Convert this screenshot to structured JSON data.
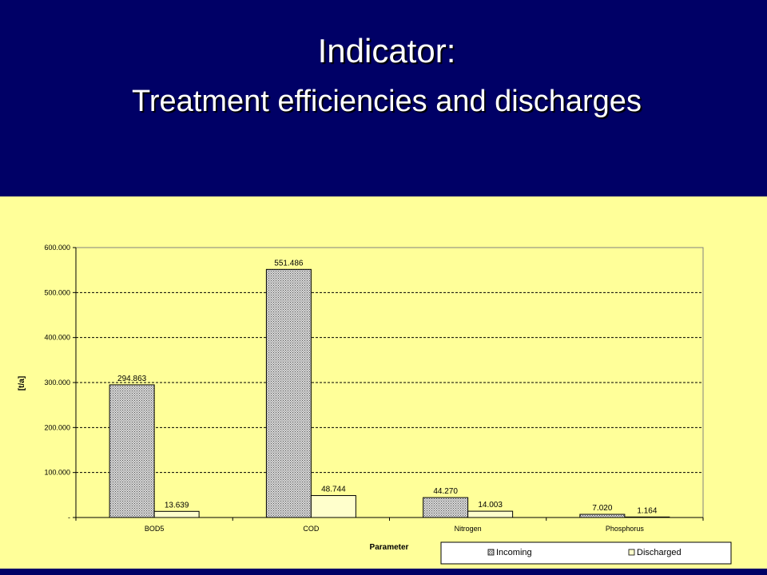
{
  "header": {
    "title_line1": "Indicator:",
    "title_line2": "Treatment efficiencies and discharges"
  },
  "colors": {
    "header_bg": "#000066",
    "slide_bg": "#ffff99",
    "incoming_fill": "#c0c0c0",
    "discharged_fill": "#ffffcc"
  },
  "chart_data": {
    "type": "bar",
    "title": "",
    "xlabel": "Parameter",
    "ylabel": "[t/a]",
    "categories": [
      "BOD5",
      "COD",
      "Nitrogen",
      "Phosphorus"
    ],
    "series": [
      {
        "name": "Incoming",
        "values": [
          294863,
          551486,
          44270,
          7020
        ],
        "labels": [
          "294.863",
          "551.486",
          "44.270",
          "7.020"
        ]
      },
      {
        "name": "Discharged",
        "values": [
          13639,
          48744,
          14003,
          1164
        ],
        "labels": [
          "13.639",
          "48.744",
          "14.003",
          "1.164"
        ]
      }
    ],
    "ylim": [
      0,
      600000
    ],
    "yticks": [
      0,
      100000,
      200000,
      300000,
      400000,
      500000,
      600000
    ],
    "ytick_labels": [
      "-",
      "100.000",
      "200.000",
      "300.000",
      "400.000",
      "500.000",
      "600.000"
    ],
    "grid": true,
    "legend_position": "bottom-right"
  }
}
